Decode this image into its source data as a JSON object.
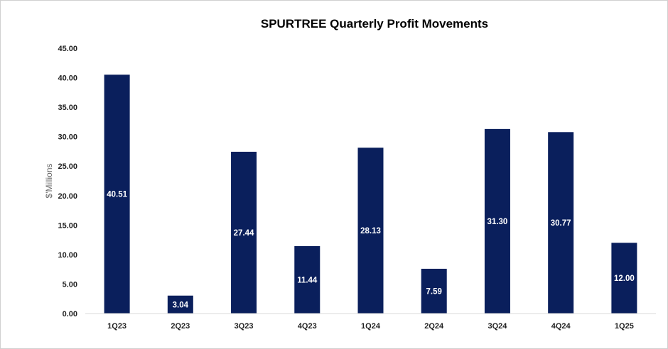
{
  "chart_data": {
    "type": "bar",
    "title": "SPURTREE Quarterly Profit Movements",
    "xlabel": "",
    "ylabel": "$'Millions",
    "ylim": [
      0,
      45
    ],
    "ytick_step": 5,
    "yticks": [
      "0.00",
      "5.00",
      "10.00",
      "15.00",
      "20.00",
      "25.00",
      "30.00",
      "35.00",
      "40.00",
      "45.00"
    ],
    "categories": [
      "1Q23",
      "2Q23",
      "3Q23",
      "4Q23",
      "1Q24",
      "2Q24",
      "3Q24",
      "4Q24",
      "1Q25"
    ],
    "values": [
      40.51,
      3.04,
      27.44,
      11.44,
      28.13,
      7.59,
      31.3,
      30.77,
      12.0
    ],
    "labels": [
      "40.51",
      "3.04",
      "27.44",
      "11.44",
      "28.13",
      "7.59",
      "31.30",
      "30.77",
      "12.00"
    ],
    "grid": false,
    "legend": "none",
    "bar_color": "#0A1F5C"
  }
}
